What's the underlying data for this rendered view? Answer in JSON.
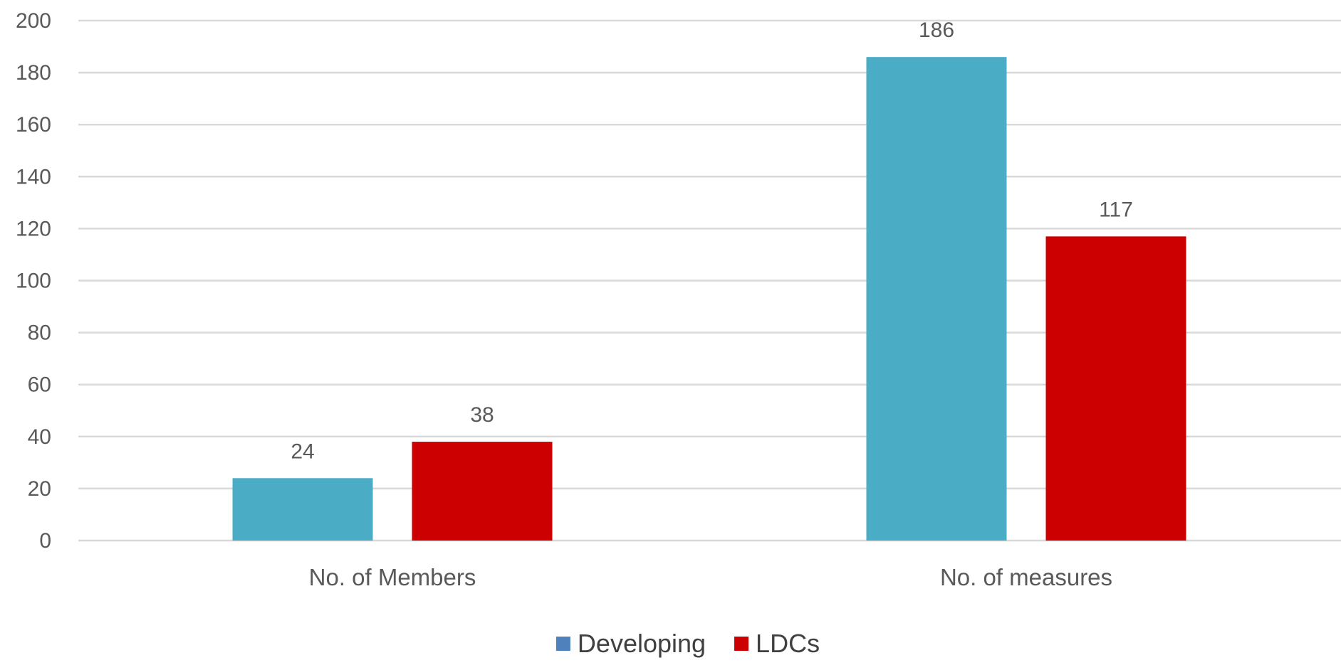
{
  "chart_data": {
    "type": "bar",
    "title": "",
    "xlabel": "",
    "ylabel": "",
    "categories": [
      "No. of Members",
      "No. of measures"
    ],
    "series": [
      {
        "name": "Developing",
        "values": [
          24,
          186
        ],
        "color": "#4BACC6"
      },
      {
        "name": "LDCs",
        "values": [
          38,
          117
        ],
        "color": "#CC0000"
      }
    ],
    "ylim": [
      0,
      200
    ],
    "y_ticks": [
      0,
      20,
      40,
      60,
      80,
      100,
      120,
      140,
      160,
      180,
      200
    ],
    "grid": true,
    "gridline_color": "#D9D9D9",
    "data_labels": true,
    "legend": {
      "position": "bottom",
      "items": [
        {
          "label": "Developing",
          "swatch_color": "#4F81BD"
        },
        {
          "label": "LDCs",
          "swatch_color": "#CC0000"
        }
      ]
    }
  }
}
